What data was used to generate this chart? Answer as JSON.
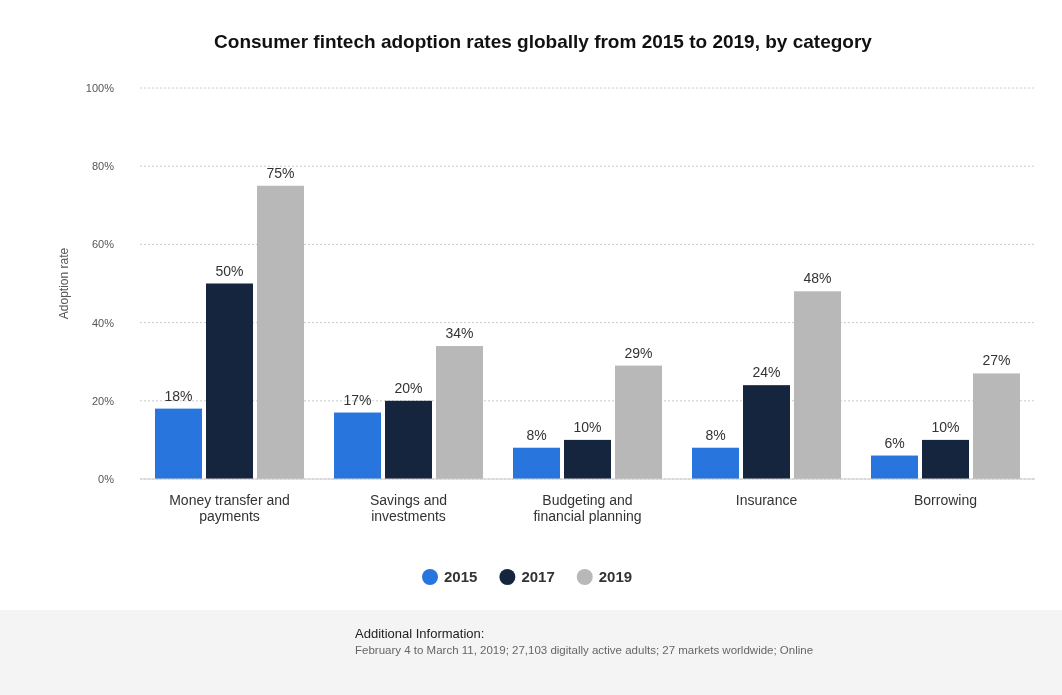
{
  "chart_data": {
    "type": "bar",
    "title": "Consumer fintech adoption rates globally from 2015 to 2019, by category",
    "ylabel": "Adoption rate",
    "categories": [
      "Money transfer and payments",
      "Savings and investments",
      "Budgeting and financial planning",
      "Insurance",
      "Borrowing"
    ],
    "series": [
      {
        "name": "2015",
        "color": "#2876dd",
        "values": [
          18,
          17,
          8,
          8,
          6
        ]
      },
      {
        "name": "2017",
        "color": "#14253d",
        "values": [
          50,
          20,
          10,
          24,
          10
        ]
      },
      {
        "name": "2019",
        "color": "#b8b8b8",
        "values": [
          75,
          34,
          29,
          48,
          27
        ]
      }
    ],
    "value_labels": [
      [
        "18%",
        "17%",
        "8%",
        "8%",
        "6%"
      ],
      [
        "50%",
        "20%",
        "10%",
        "24%",
        "10%"
      ],
      [
        "75%",
        "34%",
        "29%",
        "48%",
        "27%"
      ]
    ],
    "ylim": [
      0,
      100
    ],
    "yticks": [
      {
        "value": 0,
        "label": "0%"
      },
      {
        "value": 20,
        "label": "20%"
      },
      {
        "value": 40,
        "label": "40%"
      },
      {
        "value": 60,
        "label": "60%"
      },
      {
        "value": 80,
        "label": "80%"
      },
      {
        "value": 100,
        "label": "100%"
      }
    ],
    "grid": "y",
    "legend": "bottom",
    "annotations": [
      "Additional Information:",
      "February 4 to March 11, 2019; 27,103 digitally active adults; 27 markets worldwide; Online"
    ]
  }
}
